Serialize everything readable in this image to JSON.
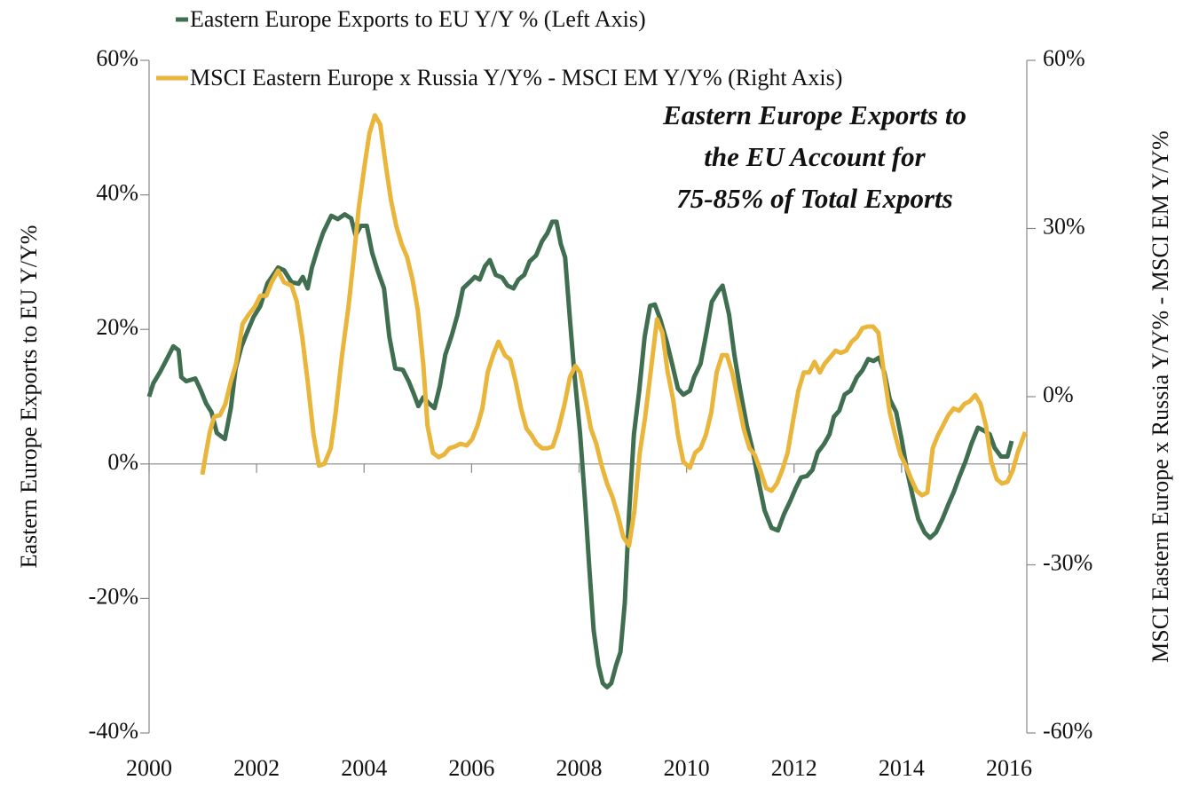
{
  "chart_data": {
    "type": "line",
    "annotation": [
      "Eastern Europe Exports to",
      "the EU Account for",
      "75-85% of Total Exports"
    ],
    "y_label": "Eastern Europe Exports to EU Y/Y%",
    "y2_label": "MSCI Eastern Europe x Russia Y/Y% - MSCI EM Y/Y%",
    "xlim": [
      2000,
      2016.33
    ],
    "xticks": [
      2000,
      2002,
      2004,
      2006,
      2008,
      2010,
      2012,
      2014,
      2016
    ],
    "ylim": [
      -40,
      60
    ],
    "yticks": [
      {
        "value": -40,
        "label": "-40%"
      },
      {
        "value": -20,
        "label": "-20%"
      },
      {
        "value": 0,
        "label": "0%"
      },
      {
        "value": 20,
        "label": "20%"
      },
      {
        "value": 40,
        "label": "40%"
      },
      {
        "value": 60,
        "label": "60%"
      }
    ],
    "y2lim": [
      -60,
      60
    ],
    "y2ticks": [
      {
        "value": -60,
        "label": "-60%"
      },
      {
        "value": -30,
        "label": "-30%"
      },
      {
        "value": 0,
        "label": "0%"
      },
      {
        "value": 30,
        "label": "30%"
      },
      {
        "value": 60,
        "label": "60%"
      }
    ],
    "legend": "top-left",
    "series": [
      {
        "name": "Eastern Europe Exports to EU Y/Y % (Left Axis)",
        "color": "#3f6e50",
        "x": [
          2000.0,
          2000.08,
          2000.2,
          2000.33,
          2000.45,
          2000.55,
          2000.6,
          2000.69,
          2000.86,
          2000.96,
          2001.06,
          2001.16,
          2001.26,
          2001.41,
          2001.52,
          2001.61,
          2001.72,
          2001.82,
          2001.94,
          2002.07,
          2002.2,
          2002.4,
          2002.51,
          2002.65,
          2002.78,
          2002.86,
          2002.95,
          2003.03,
          2003.14,
          2003.24,
          2003.39,
          2003.51,
          2003.64,
          2003.76,
          2003.84,
          2003.94,
          2004.05,
          2004.15,
          2004.25,
          2004.37,
          2004.47,
          2004.58,
          2004.72,
          2004.83,
          2004.93,
          2005.01,
          2005.1,
          2005.21,
          2005.31,
          2005.41,
          2005.51,
          2005.63,
          2005.74,
          2005.84,
          2005.96,
          2006.06,
          2006.15,
          2006.25,
          2006.34,
          2006.45,
          2006.57,
          2006.67,
          2006.78,
          2006.87,
          2006.98,
          2007.08,
          2007.2,
          2007.31,
          2007.41,
          2007.5,
          2007.58,
          2007.66,
          2007.74,
          2007.83,
          2007.91,
          2008.02,
          2008.11,
          2008.19,
          2008.27,
          2008.36,
          2008.44,
          2008.52,
          2008.6,
          2008.69,
          2008.77,
          2008.85,
          2008.93,
          2009.02,
          2009.12,
          2009.22,
          2009.32,
          2009.41,
          2009.51,
          2009.63,
          2009.73,
          2009.84,
          2009.94,
          2010.06,
          2010.14,
          2010.26,
          2010.37,
          2010.47,
          2010.59,
          2010.67,
          2010.79,
          2010.89,
          2011.0,
          2011.12,
          2011.22,
          2011.33,
          2011.45,
          2011.58,
          2011.7,
          2011.81,
          2011.93,
          2012.03,
          2012.13,
          2012.24,
          2012.34,
          2012.44,
          2012.56,
          2012.66,
          2012.74,
          2012.84,
          2012.94,
          2013.05,
          2013.17,
          2013.27,
          2013.38,
          2013.48,
          2013.58,
          2013.68,
          2013.78,
          2013.9,
          2014.0,
          2014.1,
          2014.21,
          2014.31,
          2014.43,
          2014.53,
          2014.64,
          2014.76,
          2014.86,
          2014.97,
          2015.07,
          2015.19,
          2015.3,
          2015.42,
          2015.52,
          2015.64,
          2015.73,
          2015.85,
          2015.97,
          2016.05
        ],
        "values": [
          10.0,
          12,
          13.6,
          15.6,
          17.5,
          16.9,
          12.9,
          12.3,
          12.7,
          11,
          9,
          7.7,
          4.6,
          3.7,
          8.3,
          14.2,
          17.5,
          19.5,
          21.8,
          23.5,
          26.8,
          29.2,
          28.8,
          27,
          26.8,
          27.8,
          26.1,
          29.2,
          32.1,
          34.4,
          36.9,
          36.4,
          37.1,
          36.5,
          34,
          35.4,
          35.4,
          31.4,
          28.8,
          26.1,
          18.9,
          14.2,
          14,
          12.3,
          10.3,
          8.6,
          9.9,
          9,
          8.3,
          11.6,
          16.2,
          19.1,
          22.2,
          26.1,
          27,
          27.8,
          27.4,
          29.4,
          30.3,
          28.1,
          27.7,
          26.5,
          26.1,
          27.4,
          28.1,
          30.1,
          31,
          33.1,
          34.3,
          36,
          36,
          32.7,
          30.7,
          21.5,
          13.6,
          4.4,
          -5.5,
          -15.4,
          -24.7,
          -29.9,
          -32.6,
          -33.2,
          -32.6,
          -29.9,
          -28,
          -20.7,
          -7.5,
          4.4,
          10.9,
          18.9,
          23.5,
          23.7,
          21.5,
          18.2,
          14.9,
          11.2,
          10.3,
          10.9,
          12.9,
          14.9,
          19.5,
          24.1,
          25.7,
          26.5,
          22.2,
          16.2,
          10.9,
          5.7,
          2.4,
          -2.2,
          -6.9,
          -9.5,
          -9.9,
          -7.5,
          -5.5,
          -3.6,
          -2,
          -1.8,
          -0.9,
          1.7,
          3,
          4.4,
          7,
          7.9,
          10.3,
          10.9,
          12.9,
          13.9,
          15.6,
          15.3,
          15.8,
          13.6,
          9.6,
          7.7,
          3.7,
          -0.9,
          -4.9,
          -8.2,
          -10.2,
          -11,
          -10.2,
          -8.2,
          -6.2,
          -4.2,
          -2,
          0.4,
          3,
          5.4,
          5,
          4.4,
          2.4,
          1.1,
          1.1,
          3.4
        ]
      },
      {
        "name": "MSCI Eastern Europe x Russia Y/Y% - MSCI EM Y/Y% (Right Axis)",
        "color": "#e9b53b",
        "axis": "y2",
        "x": [
          2000.99,
          2001.06,
          2001.13,
          2001.21,
          2001.32,
          2001.42,
          2001.52,
          2001.62,
          2001.74,
          2001.85,
          2001.97,
          2002.07,
          2002.18,
          2002.28,
          2002.4,
          2002.51,
          2002.65,
          2002.75,
          2002.85,
          2002.95,
          2003.06,
          2003.16,
          2003.26,
          2003.38,
          2003.47,
          2003.59,
          2003.71,
          2003.81,
          2003.9,
          2004.0,
          2004.1,
          2004.2,
          2004.3,
          2004.4,
          2004.5,
          2004.6,
          2004.7,
          2004.8,
          2004.9,
          2005.0,
          2005.1,
          2005.18,
          2005.28,
          2005.39,
          2005.49,
          2005.59,
          2005.69,
          2005.79,
          2005.91,
          2006.01,
          2006.11,
          2006.2,
          2006.3,
          2006.4,
          2006.5,
          2006.62,
          2006.72,
          2006.82,
          2006.92,
          2007.02,
          2007.11,
          2007.21,
          2007.31,
          2007.41,
          2007.51,
          2007.61,
          2007.73,
          2007.83,
          2007.93,
          2008.02,
          2008.12,
          2008.22,
          2008.32,
          2008.42,
          2008.52,
          2008.62,
          2008.72,
          2008.82,
          2008.93,
          2009.03,
          2009.13,
          2009.23,
          2009.33,
          2009.45,
          2009.55,
          2009.65,
          2009.75,
          2009.84,
          2009.94,
          2010.06,
          2010.16,
          2010.26,
          2010.36,
          2010.46,
          2010.56,
          2010.66,
          2010.75,
          2010.85,
          2010.97,
          2011.07,
          2011.17,
          2011.27,
          2011.37,
          2011.48,
          2011.58,
          2011.68,
          2011.78,
          2011.88,
          2011.98,
          2012.08,
          2012.18,
          2012.28,
          2012.38,
          2012.48,
          2012.57,
          2012.67,
          2012.77,
          2012.87,
          2012.97,
          2013.07,
          2013.17,
          2013.27,
          2013.37,
          2013.47,
          2013.57,
          2013.67,
          2013.78,
          2013.88,
          2013.98,
          2014.08,
          2014.18,
          2014.28,
          2014.38,
          2014.48,
          2014.58,
          2014.68,
          2014.77,
          2014.87,
          2014.97,
          2015.07,
          2015.17,
          2015.27,
          2015.37,
          2015.47,
          2015.57,
          2015.67,
          2015.77,
          2015.87,
          2015.97,
          2016.07,
          2016.16,
          2016.3
        ],
        "values": [
          -13.9,
          -10,
          -6.3,
          -3.6,
          -3.3,
          -1.3,
          2.7,
          5.9,
          13,
          14.6,
          16.1,
          18,
          18,
          20.4,
          22.5,
          20.4,
          19.8,
          16.9,
          10.6,
          2.7,
          -6.8,
          -12.3,
          -12,
          -9.2,
          -2.8,
          7.4,
          16.1,
          24.9,
          33.6,
          40.7,
          47,
          50.2,
          48.6,
          41.5,
          35.1,
          30.4,
          27.2,
          24.9,
          20.9,
          15.4,
          5.9,
          -5.2,
          -10,
          -10.8,
          -10.3,
          -9.2,
          -8.9,
          -8.4,
          -8.7,
          -7.6,
          -5.2,
          -2.1,
          4.3,
          7.4,
          9.8,
          7.4,
          6.6,
          2.7,
          -2.1,
          -5.7,
          -6.8,
          -8.4,
          -9.2,
          -9.2,
          -8.9,
          -6,
          -1.3,
          3.5,
          5.5,
          4.3,
          -0.5,
          -5.7,
          -8.4,
          -12.3,
          -15.5,
          -17.9,
          -21.1,
          -25,
          -26.6,
          -20.3,
          -10,
          -3.6,
          4.3,
          13.8,
          11.4,
          4.3,
          -0.5,
          -6.8,
          -11.6,
          -12.7,
          -10,
          -9.2,
          -6.8,
          -2.8,
          4.3,
          7.4,
          7.4,
          4.3,
          -1.3,
          -6,
          -9.2,
          -10.4,
          -13.1,
          -16.3,
          -16.8,
          -15.5,
          -13.1,
          -10,
          -4.4,
          1.1,
          4.3,
          4.3,
          6.2,
          4.3,
          5.9,
          7,
          8.2,
          7.8,
          8.2,
          9.8,
          10.6,
          12.2,
          12.5,
          12.5,
          11.4,
          4.3,
          -2.8,
          -6.8,
          -10.4,
          -12.3,
          -14.7,
          -16.8,
          -17.6,
          -17.1,
          -9.2,
          -6.8,
          -5.2,
          -3.3,
          -2.1,
          -2.5,
          -1.3,
          -0.8,
          0.3,
          -1.3,
          -5.2,
          -11.6,
          -14.7,
          -15.5,
          -15.2,
          -13.1,
          -10,
          -6.3
        ]
      }
    ]
  }
}
